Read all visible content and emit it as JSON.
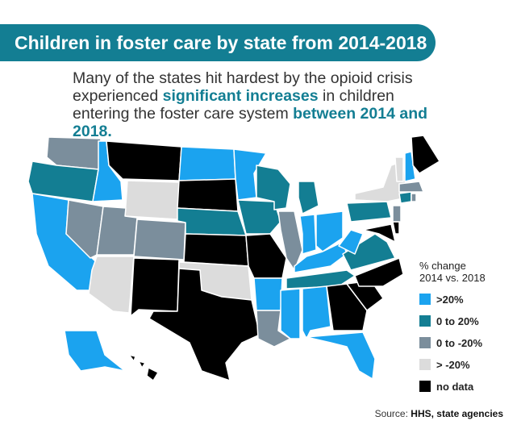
{
  "header": {
    "title": "Children in foster care by state from 2014-2018"
  },
  "intro": {
    "parts": [
      "Many of the states hit hardest by the opioid crisis experienced ",
      "significant increases",
      " in children entering the foster care system ",
      "between 2014 and 2018."
    ]
  },
  "legend": {
    "title": [
      "% change",
      "2014 vs. 2018"
    ],
    "items": [
      {
        "label": ">20%",
        "color": "#1ba3ef"
      },
      {
        "label": "0 to 20%",
        "color": "#137e93"
      },
      {
        "label": "0 to -20%",
        "color": "#7b8e9c"
      },
      {
        "label": "> -20%",
        "color": "#dcdcdc"
      },
      {
        "label": "no data",
        "color": "#000000"
      }
    ]
  },
  "source": {
    "label": "Source:",
    "text": "HHS, state agencies"
  }
}
